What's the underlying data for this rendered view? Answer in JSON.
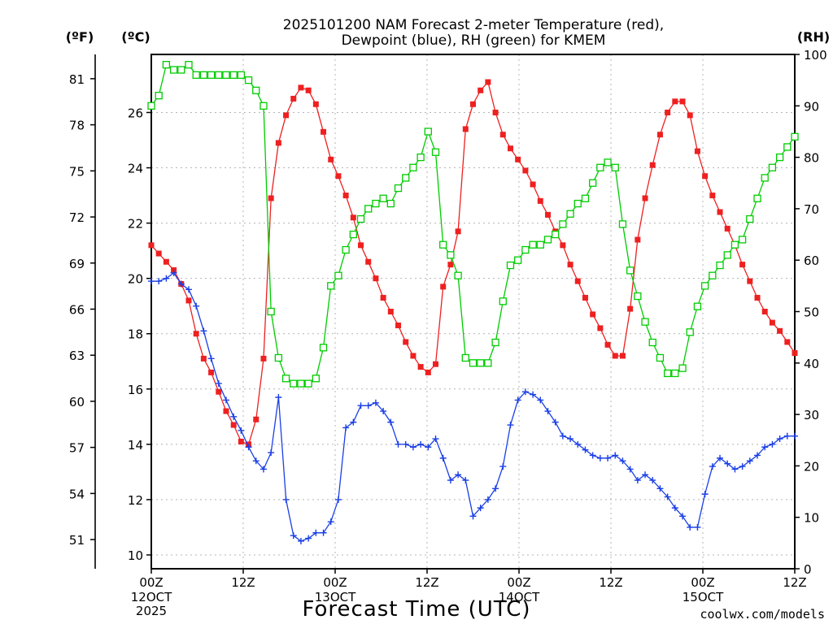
{
  "chart_data": {
    "type": "line",
    "title_line1": "2025101200 NAM Forecast 2-meter Temperature (red),",
    "title_line2": "Dewpoint (blue), RH (green) for KMEM",
    "xlabel": "Forecast Time (UTC)",
    "credit": "coolwx.com/models",
    "unit_f": "(ºF)",
    "unit_c": "(ºC)",
    "unit_rh": "(RH)",
    "x_range_hours": [
      0,
      84
    ],
    "celsius_range": [
      9.5,
      28.1
    ],
    "rh_range": [
      0,
      100
    ],
    "x_ticks": [
      {
        "hour": 0,
        "label": "00Z",
        "sub1": "12OCT",
        "sub2": "2025"
      },
      {
        "hour": 12,
        "label": "12Z",
        "sub1": "",
        "sub2": ""
      },
      {
        "hour": 24,
        "label": "00Z",
        "sub1": "13OCT",
        "sub2": ""
      },
      {
        "hour": 36,
        "label": "12Z",
        "sub1": "",
        "sub2": ""
      },
      {
        "hour": 48,
        "label": "00Z",
        "sub1": "14OCT",
        "sub2": ""
      },
      {
        "hour": 60,
        "label": "12Z",
        "sub1": "",
        "sub2": ""
      },
      {
        "hour": 72,
        "label": "00Z",
        "sub1": "15OCT",
        "sub2": ""
      },
      {
        "hour": 84,
        "label": "12Z",
        "sub1": "",
        "sub2": ""
      }
    ],
    "celsius_ticks": [
      10,
      12,
      14,
      16,
      18,
      20,
      22,
      24,
      26
    ],
    "fahrenheit_ticks": [
      51,
      54,
      57,
      60,
      63,
      66,
      69,
      72,
      75,
      78,
      81
    ],
    "rh_ticks": [
      0,
      10,
      20,
      30,
      40,
      50,
      60,
      70,
      80,
      90,
      100
    ],
    "colors": {
      "temperature": "#ee2020",
      "dewpoint": "#1a3fe6",
      "rh": "#00cc00",
      "grid": "#b4b4b4",
      "credit": "#dd2020"
    },
    "series": [
      {
        "name": "Temperature (°C)",
        "key": "temperature",
        "marker": "square",
        "values": [
          21.2,
          20.9,
          20.6,
          20.3,
          19.8,
          19.2,
          18.0,
          17.1,
          16.6,
          15.9,
          15.2,
          14.7,
          14.1,
          14.0,
          14.9,
          17.1,
          22.9,
          24.9,
          25.9,
          26.5,
          26.9,
          26.8,
          26.3,
          25.3,
          24.3,
          23.7,
          23.0,
          22.2,
          21.2,
          20.6,
          20.0,
          19.3,
          18.8,
          18.3,
          17.7,
          17.2,
          16.8,
          16.6,
          16.9,
          19.7,
          20.5,
          21.7,
          25.4,
          26.3,
          26.8,
          27.1,
          26.0,
          25.2,
          24.7,
          24.3,
          23.9,
          23.4,
          22.8,
          22.3,
          21.7,
          21.2,
          20.5,
          19.9,
          19.3,
          18.7,
          18.2,
          17.6,
          17.2,
          17.2,
          18.9,
          21.4,
          22.9,
          24.1,
          25.2,
          26.0,
          26.4,
          26.4,
          25.9,
          24.6,
          23.7,
          23.0,
          22.4,
          21.8,
          21.2,
          20.5,
          19.9,
          19.3,
          18.8,
          18.4,
          18.1,
          17.7,
          17.3
        ]
      },
      {
        "name": "Dewpoint (°C)",
        "key": "dewpoint",
        "marker": "plus",
        "values": [
          19.9,
          19.9,
          20.0,
          20.2,
          19.8,
          19.6,
          19.0,
          18.1,
          17.1,
          16.2,
          15.6,
          15.0,
          14.5,
          13.9,
          13.4,
          13.1,
          13.7,
          15.7,
          12.0,
          10.7,
          10.5,
          10.6,
          10.8,
          10.8,
          11.2,
          12.0,
          14.6,
          14.8,
          15.4,
          15.4,
          15.5,
          15.2,
          14.8,
          14.0,
          14.0,
          13.9,
          14.0,
          13.9,
          14.2,
          13.5,
          12.7,
          12.9,
          12.7,
          11.4,
          11.7,
          12.0,
          12.4,
          13.2,
          14.7,
          15.6,
          15.9,
          15.8,
          15.6,
          15.2,
          14.8,
          14.3,
          14.2,
          14.0,
          13.8,
          13.6,
          13.5,
          13.5,
          13.6,
          13.4,
          13.1,
          12.7,
          12.9,
          12.7,
          12.4,
          12.1,
          11.7,
          11.4,
          11.0,
          11.0,
          12.2,
          13.2,
          13.5,
          13.3,
          13.1,
          13.2,
          13.4,
          13.6,
          13.9,
          14.0,
          14.2,
          14.3,
          14.3
        ]
      },
      {
        "name": "RH (%)",
        "key": "rh",
        "marker": "square-open",
        "values": [
          90,
          92,
          98,
          97,
          97,
          98,
          96,
          96,
          96,
          96,
          96,
          96,
          96,
          95,
          93,
          90,
          50,
          41,
          37,
          36,
          36,
          36,
          37,
          43,
          55,
          57,
          62,
          65,
          68,
          70,
          71,
          72,
          71,
          74,
          76,
          78,
          80,
          85,
          81,
          63,
          61,
          57,
          41,
          40,
          40,
          40,
          44,
          52,
          59,
          60,
          62,
          63,
          63,
          64,
          65,
          67,
          69,
          71,
          72,
          75,
          78,
          79,
          78,
          67,
          58,
          53,
          48,
          44,
          41,
          38,
          38,
          39,
          46,
          51,
          55,
          57,
          59,
          61,
          63,
          64,
          68,
          72,
          76,
          78,
          80,
          82,
          84
        ]
      }
    ]
  }
}
